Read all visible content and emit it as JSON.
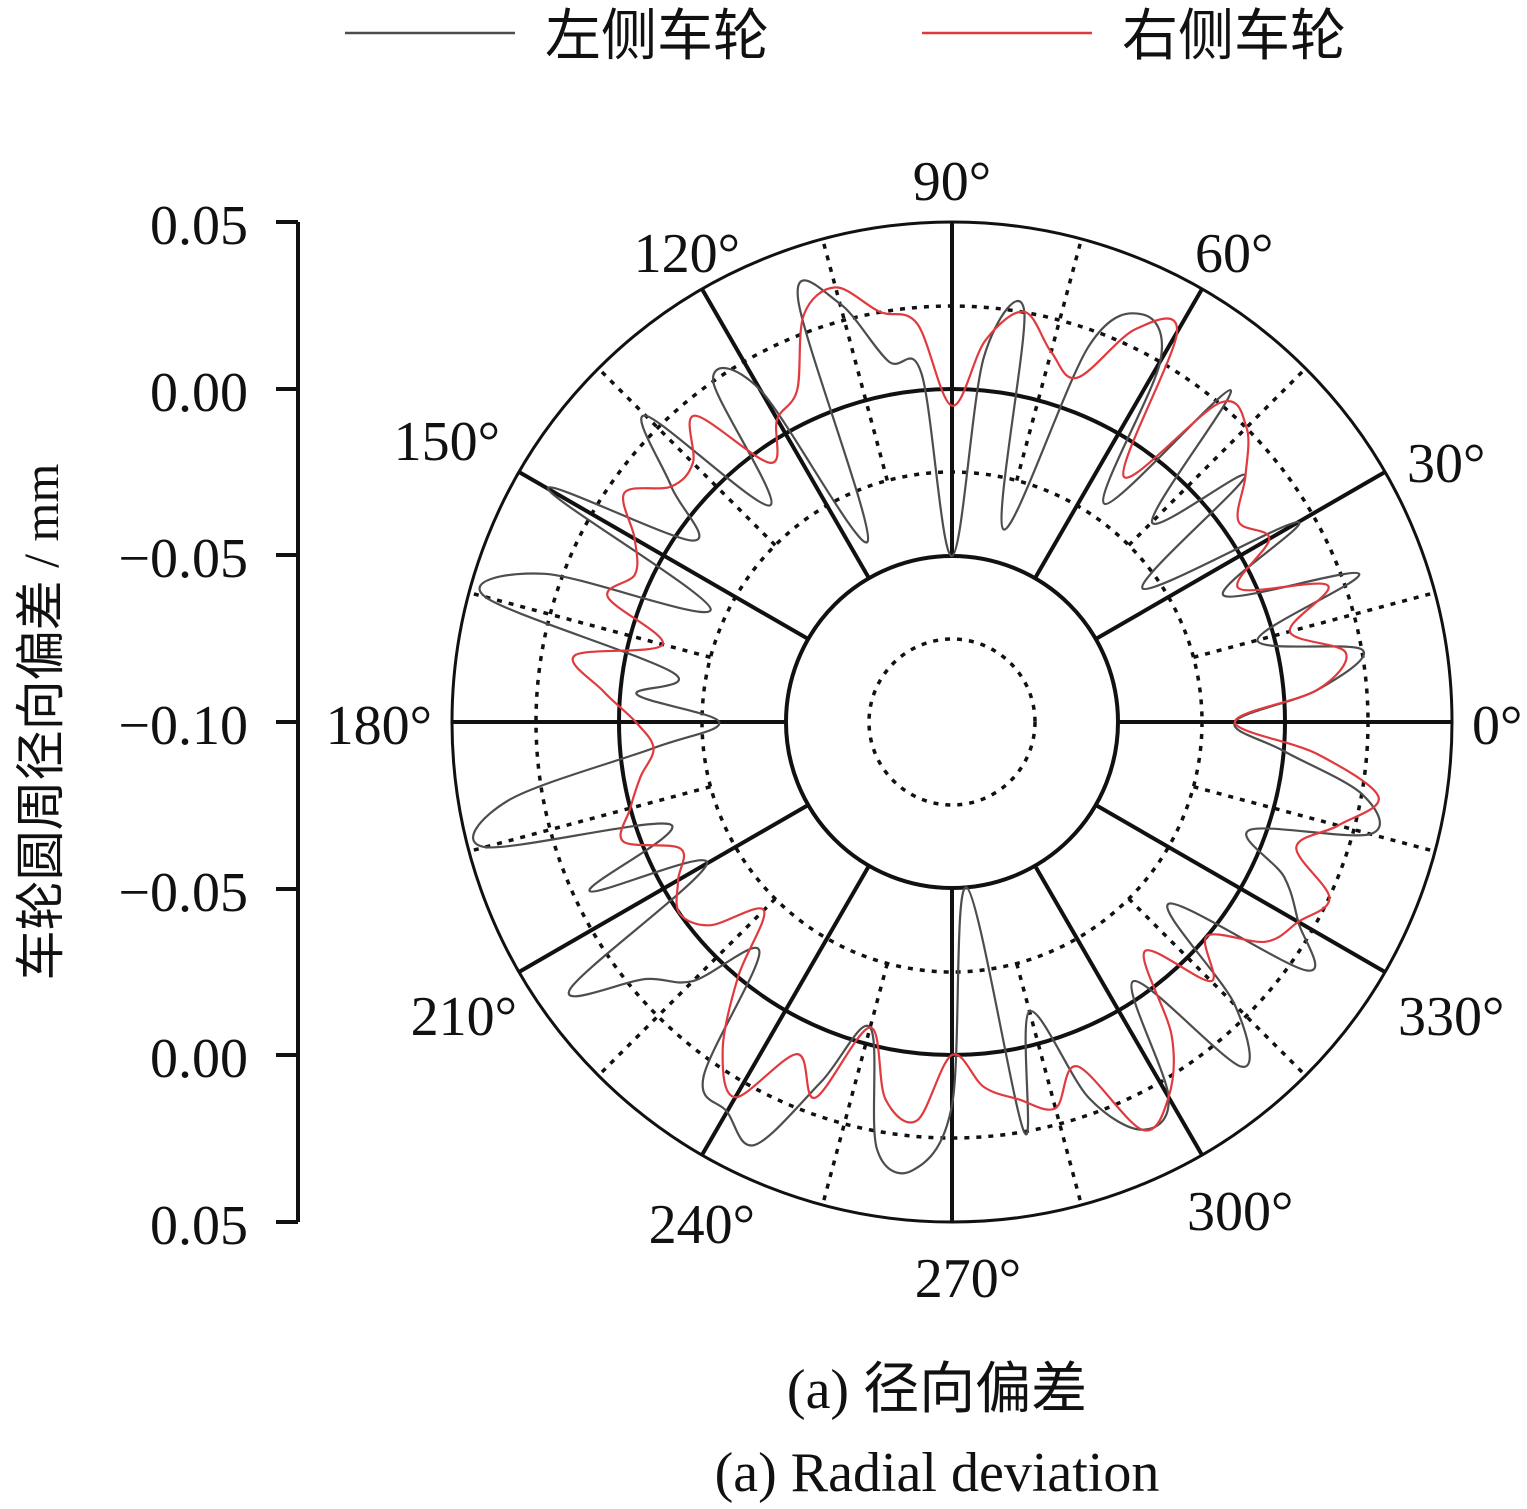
{
  "chart_data": {
    "type": "polar-line",
    "legend": {
      "position": "top",
      "entries": [
        {
          "name": "左侧车轮",
          "color": "#4d4d4d"
        },
        {
          "name": "右侧车轮",
          "color": "#e03a3e"
        }
      ]
    },
    "ylabel": "车轮圆周径向偏差 / mm",
    "radial_scale_ticks_top": [
      "0.05",
      "0.00",
      "−0.05",
      "−0.10"
    ],
    "radial_scale_ticks_bottom": [
      "−0.05",
      "0.00",
      "0.05"
    ],
    "radial_range": [
      -0.1,
      0.05
    ],
    "angle_labels": [
      "0°",
      "30°",
      "60°",
      "90°",
      "120°",
      "150°",
      "180°",
      "210°",
      "240°",
      "270°",
      "300°",
      "330°"
    ],
    "caption_cn": "(a) 径向偏差",
    "caption_en": "(a) Radial deviation",
    "series": [
      {
        "name": "左侧车轮",
        "color": "#4d4d4d",
        "angles": [
          0,
          5,
          10,
          15,
          20,
          25,
          30,
          35,
          40,
          45,
          50,
          55,
          60,
          65,
          70,
          75,
          80,
          85,
          90,
          95,
          100,
          105,
          110,
          115,
          120,
          125,
          130,
          135,
          140,
          145,
          150,
          155,
          160,
          165,
          170,
          175,
          180,
          185,
          190,
          195,
          200,
          205,
          210,
          215,
          220,
          225,
          230,
          235,
          240,
          245,
          250,
          255,
          260,
          265,
          270,
          275,
          280,
          285,
          290,
          295,
          300,
          305,
          310,
          315,
          320,
          325,
          330,
          335,
          340,
          345,
          350,
          355
        ],
        "values": [
          -0.015,
          0.01,
          0.025,
          -0.005,
          0.03,
          -0.01,
          0.02,
          -0.03,
          0.015,
          -0.015,
          0.03,
          -0.02,
          0.025,
          0.035,
          0.02,
          -0.04,
          0.025,
          0.01,
          -0.05,
          0.005,
          0.01,
          0.03,
          0.035,
          -0.04,
          0.015,
          0.025,
          -0.015,
          0.03,
          0.01,
          -0.005,
          0.04,
          -0.02,
          0.03,
          0.045,
          -0.015,
          -0.005,
          -0.03,
          -0.01,
          0.035,
          0.045,
          -0.01,
          0.02,
          -0.015,
          0.04,
          0.02,
          0.01,
          -0.01,
          0.03,
          0.035,
          0.04,
          0.015,
          -0.005,
          0.03,
          0.035,
          0.015,
          -0.05,
          0.025,
          -0.01,
          0.02,
          0.035,
          0.03,
          -0.005,
          0.035,
          0.02,
          -0.015,
          0.03,
          0.02,
          0.01,
          -0.005,
          0.03,
          0.025,
          0.0
        ]
      },
      {
        "name": "右侧车轮",
        "color": "#e03a3e",
        "angles": [
          0,
          5,
          10,
          15,
          20,
          25,
          30,
          35,
          40,
          45,
          50,
          55,
          60,
          65,
          70,
          75,
          80,
          85,
          90,
          95,
          100,
          105,
          110,
          115,
          120,
          125,
          130,
          135,
          140,
          145,
          150,
          155,
          160,
          165,
          170,
          175,
          180,
          185,
          190,
          195,
          200,
          205,
          210,
          215,
          220,
          225,
          230,
          235,
          240,
          245,
          250,
          255,
          260,
          265,
          270,
          275,
          280,
          285,
          290,
          295,
          300,
          305,
          310,
          315,
          320,
          325,
          330,
          335,
          340,
          345,
          350,
          355
        ],
        "values": [
          -0.015,
          0.01,
          0.02,
          0.005,
          0.02,
          -0.005,
          0.01,
          0.005,
          0.015,
          0.025,
          0.025,
          -0.01,
          0.035,
          0.03,
          0.01,
          0.015,
          0.025,
          0.015,
          -0.005,
          0.02,
          0.025,
          0.035,
          0.03,
          0.01,
          0.005,
          -0.005,
          0.02,
          0.01,
          0.01,
          0.02,
          0.01,
          0.005,
          0.01,
          -0.01,
          0.015,
          0.005,
          -0.005,
          -0.01,
          -0.005,
          0.0,
          0.005,
          -0.01,
          -0.005,
          0.0,
          -0.005,
          -0.02,
          0.0,
          0.02,
          0.03,
          0.01,
          0.02,
          -0.005,
          0.015,
          0.02,
          0.0,
          0.01,
          0.015,
          0.02,
          0.01,
          0.035,
          0.03,
          0.015,
          -0.01,
          0.01,
          0.0,
          0.015,
          0.02,
          0.025,
          0.01,
          0.02,
          0.03,
          0.01
        ]
      }
    ]
  }
}
